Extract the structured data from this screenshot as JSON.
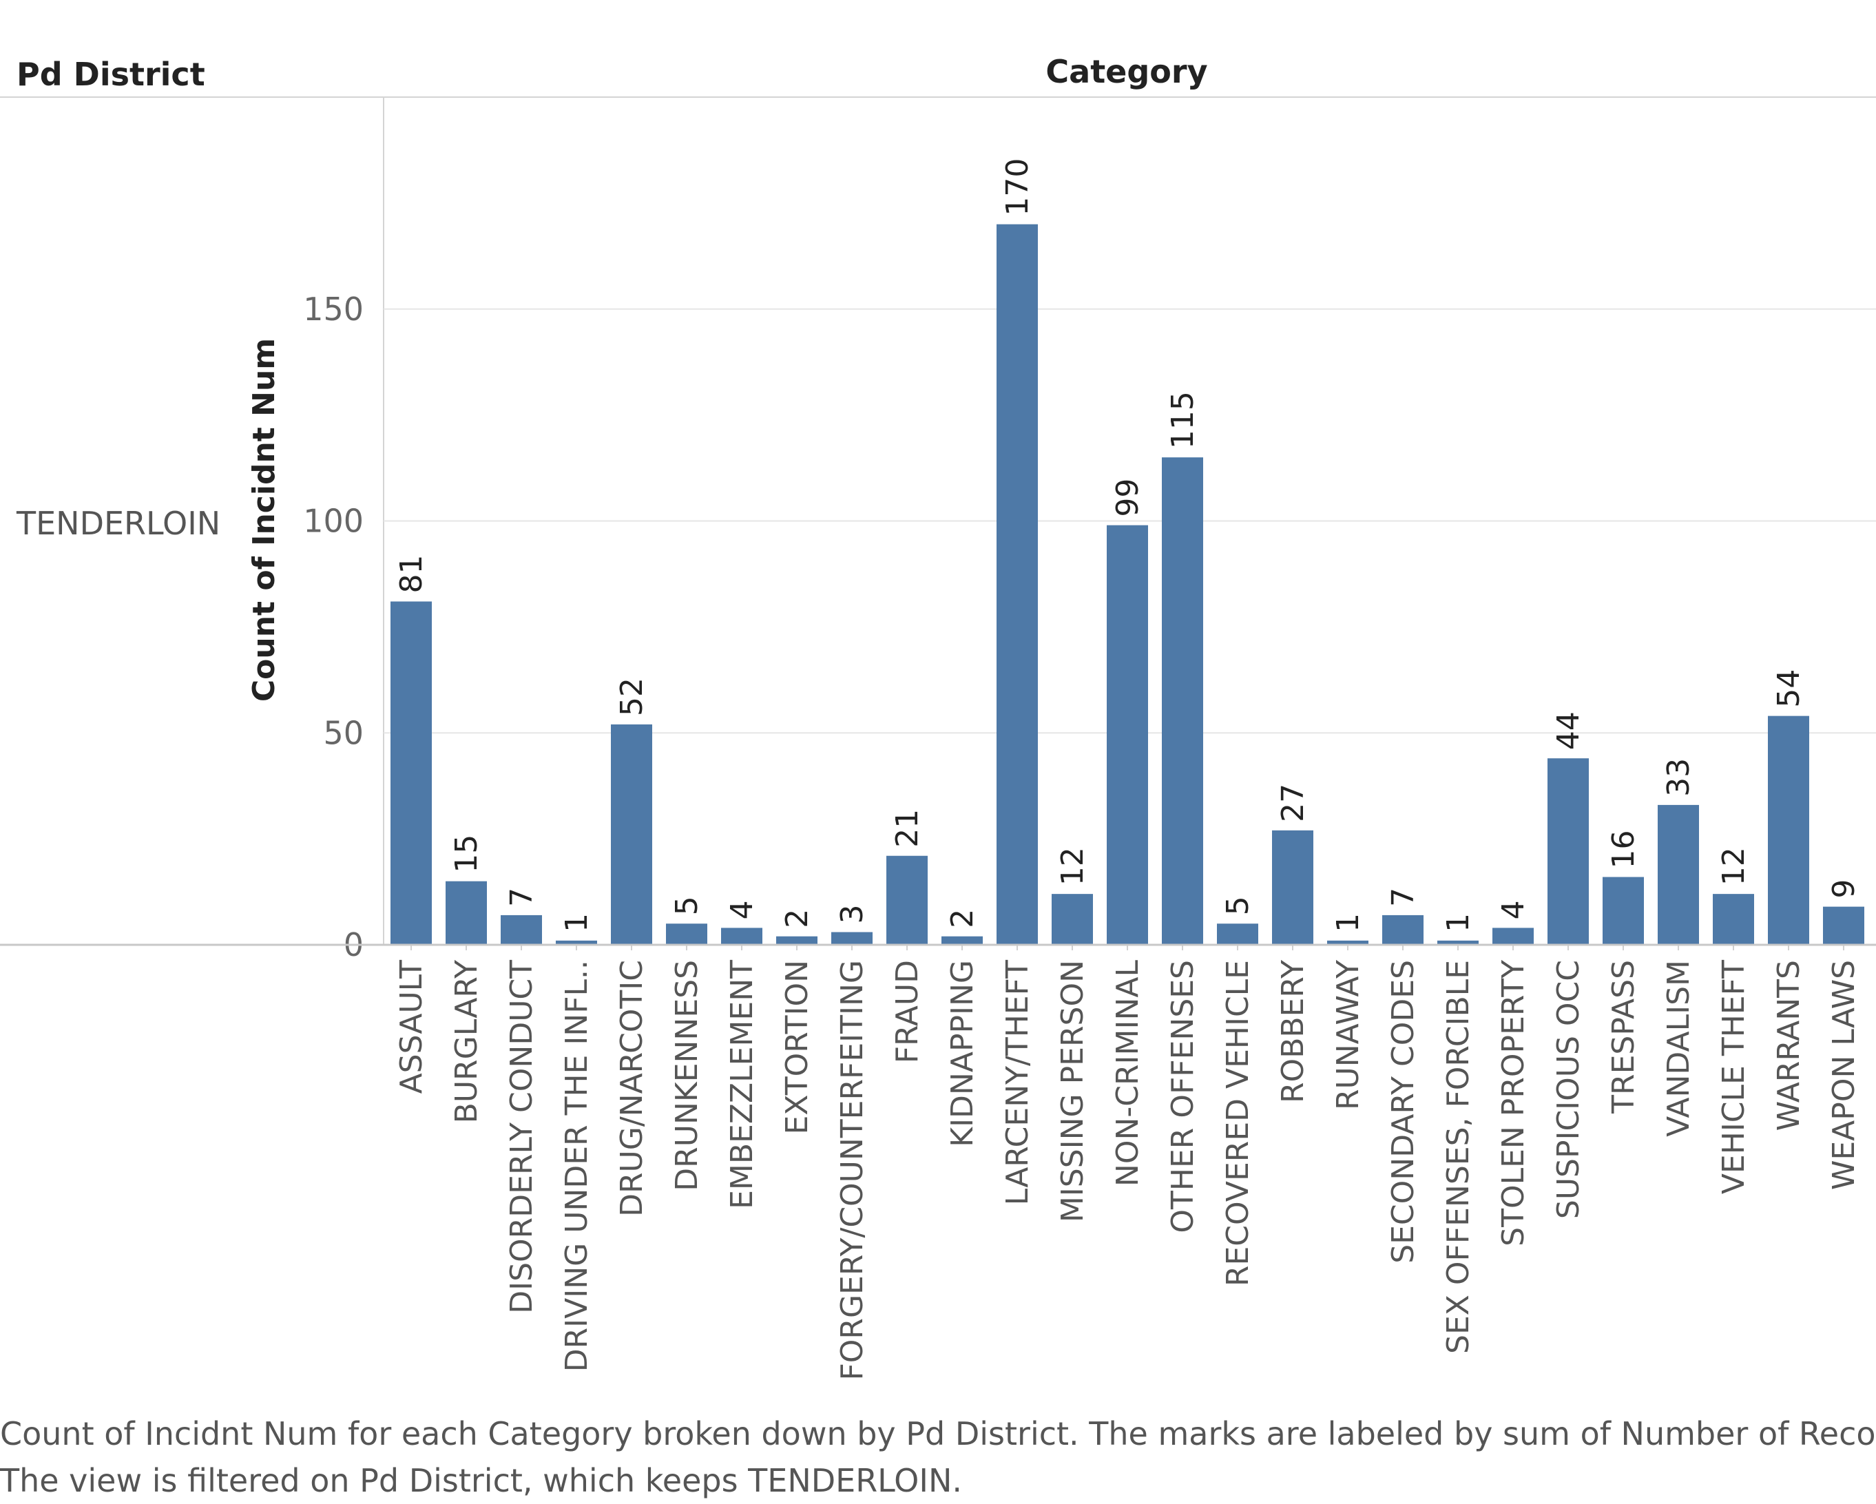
{
  "headers": {
    "row_header": "Pd District",
    "column_header": "Category"
  },
  "row_label": "TENDERLOIN",
  "colors": {
    "bar": "#4e79a7",
    "grid": "#e6e6e6",
    "axis": "#c8c8c8"
  },
  "chart_data": {
    "type": "bar",
    "title": "",
    "xlabel": "",
    "ylabel": "Count of Incidnt Num",
    "ylim": [
      0,
      200
    ],
    "yticks": [
      0,
      50,
      100,
      150
    ],
    "grid": true,
    "label_orientation": "vertical",
    "categories": [
      "ASSAULT",
      "BURGLARY",
      "DISORDERLY CONDUCT",
      "DRIVING UNDER THE INFL..",
      "DRUG/NARCOTIC",
      "DRUNKENNESS",
      "EMBEZZLEMENT",
      "EXTORTION",
      "FORGERY/COUNTERFEITING",
      "FRAUD",
      "KIDNAPPING",
      "LARCENY/THEFT",
      "MISSING PERSON",
      "NON-CRIMINAL",
      "OTHER OFFENSES",
      "RECOVERED VEHICLE",
      "ROBBERY",
      "RUNAWAY",
      "SECONDARY CODES",
      "SEX OFFENSES, FORCIBLE",
      "STOLEN PROPERTY",
      "SUSPICIOUS OCC",
      "TRESPASS",
      "VANDALISM",
      "VEHICLE THEFT",
      "WARRANTS",
      "WEAPON LAWS"
    ],
    "values": [
      81,
      15,
      7,
      1,
      52,
      5,
      4,
      2,
      3,
      21,
      2,
      170,
      12,
      99,
      115,
      5,
      27,
      1,
      7,
      1,
      4,
      44,
      16,
      33,
      12,
      54,
      9
    ]
  },
  "caption": {
    "line1": "Count of Incidnt Num for each Category broken down by Pd District.  The marks are labeled by sum of Number of Records.",
    "line2": "The view is filtered on Pd District, which keeps TENDERLOIN."
  }
}
